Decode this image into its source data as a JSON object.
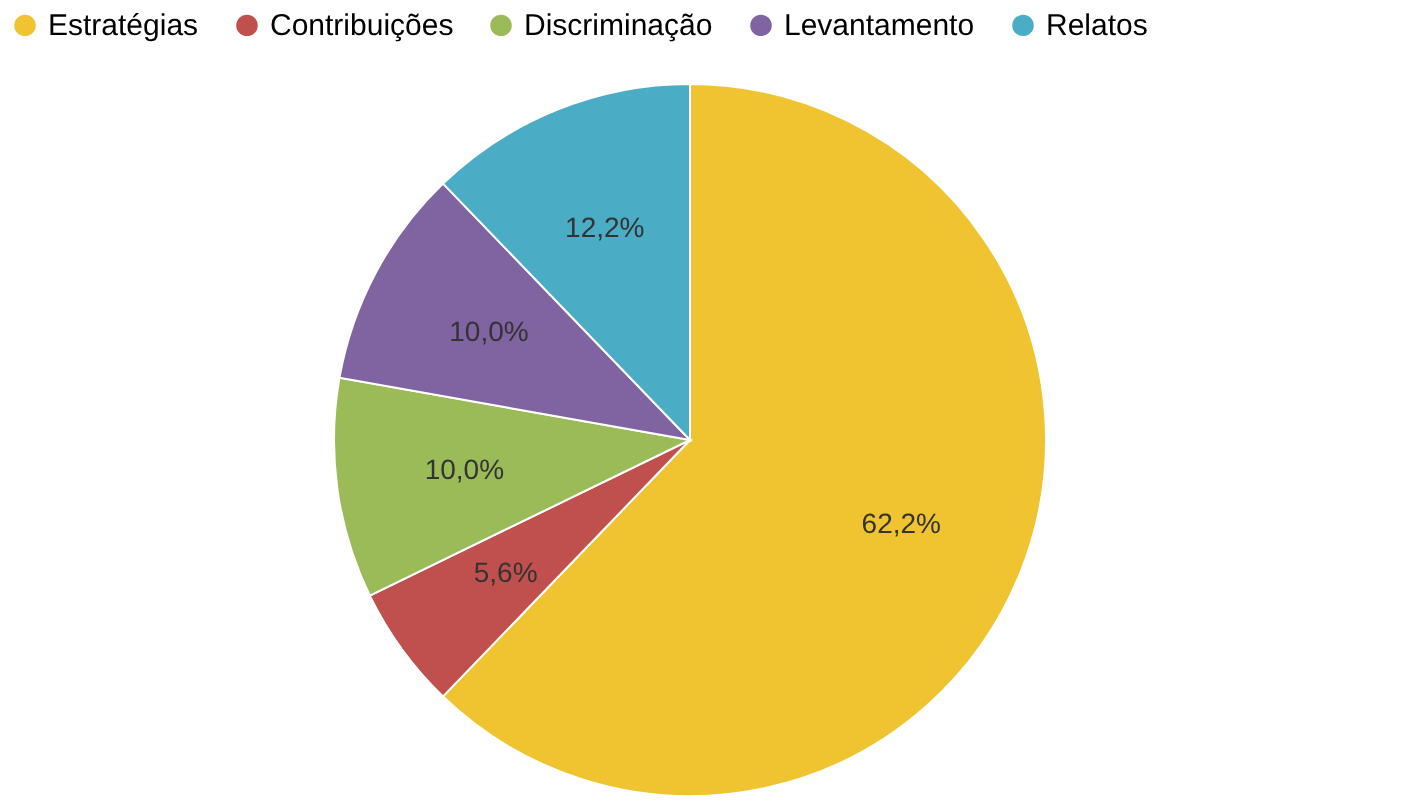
{
  "chart_data": {
    "type": "pie",
    "categories": [
      "Estratégias",
      "Contribuições",
      "Discriminação",
      "Levantamento",
      "Relatos"
    ],
    "values": [
      62.2,
      5.6,
      10.0,
      10.0,
      12.2
    ],
    "colors": [
      "#f0c330",
      "#c0504d",
      "#9bbb59",
      "#8064a2",
      "#4bacc6"
    ],
    "value_labels": [
      "62,2%",
      "5,6%",
      "10,0%",
      "10,0%",
      "12,2%"
    ],
    "legend": "top"
  }
}
